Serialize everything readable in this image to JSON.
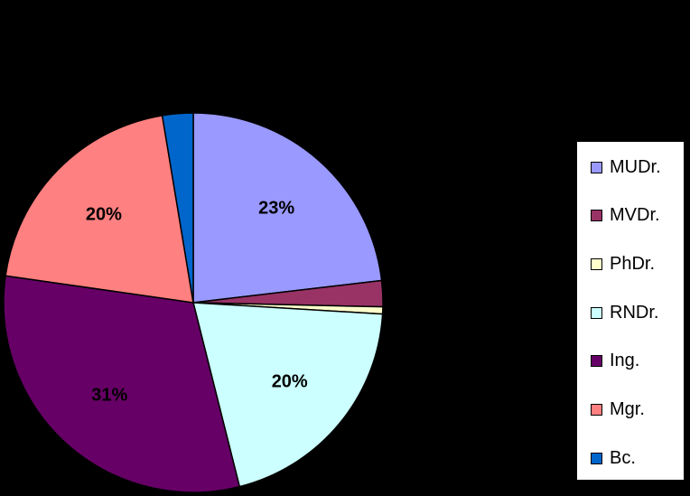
{
  "chart_data": {
    "type": "pie",
    "title": "",
    "categories": [
      "MUDr.",
      "MVDr.",
      "PhDr.",
      "RNDr.",
      "Ing.",
      "Mgr.",
      "Bc."
    ],
    "values": [
      23,
      2.2,
      0.6,
      20,
      31,
      20,
      2.6
    ],
    "data_labels": [
      "23%",
      "",
      "",
      "20%",
      "31%",
      "20%",
      ""
    ],
    "colors": [
      "#9999ff",
      "#993366",
      "#ffffcc",
      "#ccffff",
      "#660066",
      "#ff8080",
      "#0066cc"
    ],
    "start_angle_deg": 0,
    "direction": "clockwise",
    "legend_position": "right"
  }
}
